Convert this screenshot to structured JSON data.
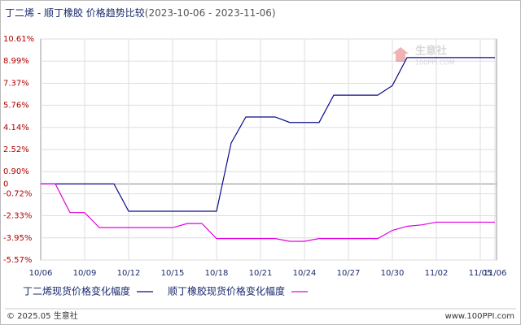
{
  "chart_data": {
    "type": "line",
    "title": "丁二烯 - 顺丁橡胶 价格趋势比较",
    "subtitle": "(2023-10-06 - 2023-11-06)",
    "categories": [
      "10/06",
      null,
      null,
      "10/09",
      null,
      null,
      "10/12",
      null,
      null,
      "10/15",
      null,
      null,
      "10/18",
      null,
      null,
      "10/21",
      null,
      null,
      "10/24",
      null,
      null,
      "10/27",
      null,
      null,
      "10/30",
      null,
      null,
      "11/02",
      null,
      null,
      "11/05",
      "11/06"
    ],
    "series": [
      {
        "name": "丁二烯现货价格变化幅度",
        "color": "#0a0a8c",
        "values": [
          0,
          0,
          0,
          0,
          0,
          0,
          -2,
          -2,
          -2,
          -2,
          -2,
          -2,
          -2,
          3,
          4.9,
          4.9,
          4.9,
          4.5,
          4.5,
          4.5,
          6.5,
          6.5,
          6.5,
          6.5,
          7.2,
          9.25,
          9.25,
          9.25,
          9.25,
          9.25,
          9.25,
          9.25
        ]
      },
      {
        "name": "顺丁橡胶现货价格变化幅度",
        "color": "#e000e0",
        "values": [
          0,
          0,
          -2.1,
          -2.1,
          -3.2,
          -3.2,
          -3.2,
          -3.2,
          -3.2,
          -3.2,
          -2.9,
          -2.9,
          -4.0,
          -4.0,
          -4.0,
          -4.0,
          -4.0,
          -4.2,
          -4.2,
          -4.0,
          -4.0,
          -4.0,
          -4.0,
          -4.0,
          -3.4,
          -3.1,
          -3.0,
          -2.8,
          -2.8,
          -2.8,
          -2.8,
          -2.8
        ]
      }
    ],
    "ylim": [
      -5.57,
      10.61
    ],
    "yticks": [
      {
        "value": -5.57,
        "label": "-5.57%"
      },
      {
        "value": -3.95,
        "label": "-3.95%"
      },
      {
        "value": -2.33,
        "label": "-2.33%"
      },
      {
        "value": -0.72,
        "label": "-0.72%"
      },
      0,
      {
        "value": 0.9,
        "label": "0.90%"
      },
      {
        "value": 2.52,
        "label": "2.52%"
      },
      {
        "value": 4.14,
        "label": "4.14%"
      },
      {
        "value": 5.76,
        "label": "5.76%"
      },
      {
        "value": 7.37,
        "label": "7.37%"
      },
      {
        "value": 8.99,
        "label": "8.99%"
      },
      {
        "value": 10.61,
        "label": "10.61%"
      }
    ],
    "grid": true,
    "watermark": [
      "生意社",
      "100PPI.COM"
    ],
    "footer_left": "© 2025.05 生意社",
    "footer_right": "www.100PPI.com"
  }
}
